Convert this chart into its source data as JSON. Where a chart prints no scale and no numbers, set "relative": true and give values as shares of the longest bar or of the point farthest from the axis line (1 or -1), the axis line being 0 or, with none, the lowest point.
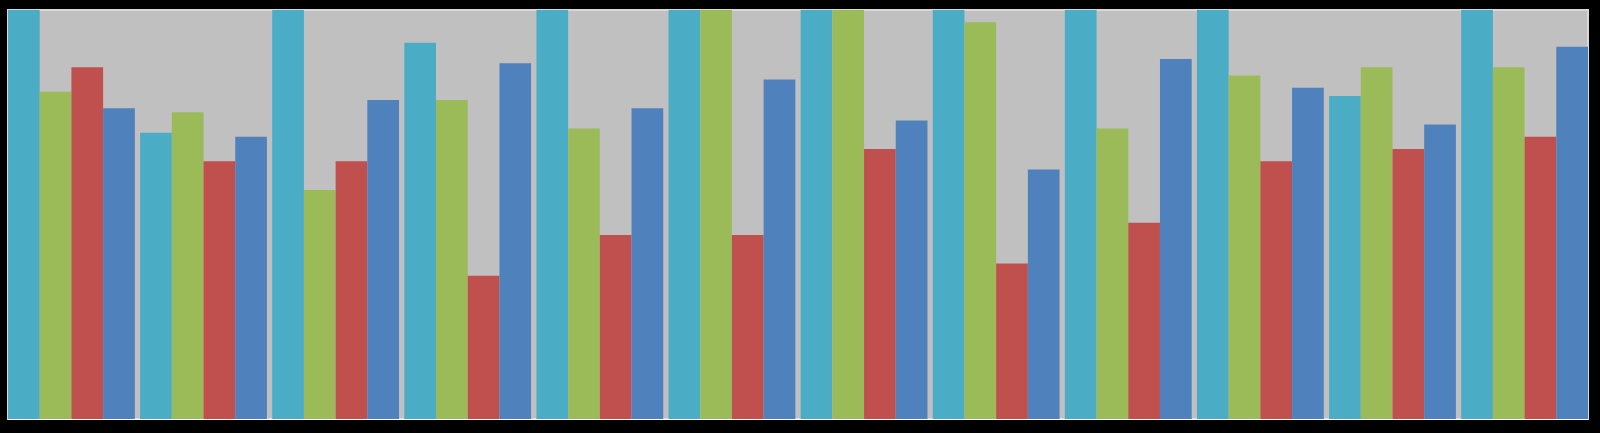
{
  "chart_data": {
    "type": "bar",
    "relative": true,
    "tick_labels": false,
    "grid": false,
    "legend": false,
    "categories": [
      null,
      null,
      null,
      null,
      null,
      null,
      null,
      null,
      null,
      null,
      null,
      null
    ],
    "series": [
      {
        "color": "#4bacc6",
        "values": [
          1.0,
          0.7,
          1.0,
          0.92,
          1.0,
          1.0,
          1.0,
          1.0,
          1.0,
          1.0,
          0.79,
          1.0
        ]
      },
      {
        "color": "#9bbb59",
        "values": [
          0.8,
          0.75,
          0.56,
          0.78,
          0.71,
          1.0,
          1.0,
          0.97,
          0.71,
          0.84,
          0.86,
          0.86
        ]
      },
      {
        "color": "#c0504d",
        "values": [
          0.86,
          0.63,
          0.63,
          0.35,
          0.45,
          0.45,
          0.66,
          0.38,
          0.48,
          0.63,
          0.66,
          0.69
        ]
      },
      {
        "color": "#4f81bd",
        "values": [
          0.76,
          0.69,
          0.78,
          0.87,
          0.76,
          0.83,
          0.73,
          0.61,
          0.88,
          0.81,
          0.72,
          0.91
        ]
      }
    ]
  }
}
